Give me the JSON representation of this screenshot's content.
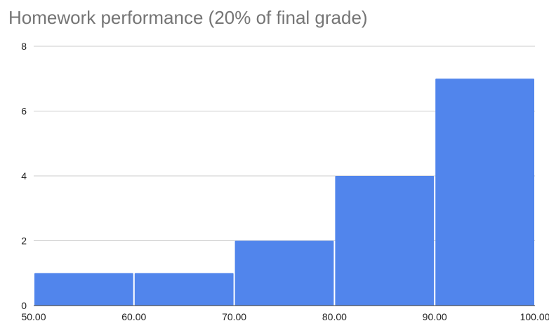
{
  "chart_data": {
    "type": "bar",
    "title": "Homework performance (20% of final grade)",
    "xlabel": "",
    "ylabel": "",
    "bin_edges": [
      50,
      60,
      70,
      80,
      90,
      100
    ],
    "x_tick_labels": [
      "50.00",
      "60.00",
      "70.00",
      "80.00",
      "90.00",
      "100.00"
    ],
    "values": [
      1,
      1,
      2,
      4,
      7
    ],
    "ylim": [
      0,
      8
    ],
    "y_ticks": [
      0,
      2,
      4,
      6,
      8
    ],
    "grid": true,
    "legend": "none",
    "bar_color": "#5185EC",
    "grid_color": "#CCCCCC"
  }
}
